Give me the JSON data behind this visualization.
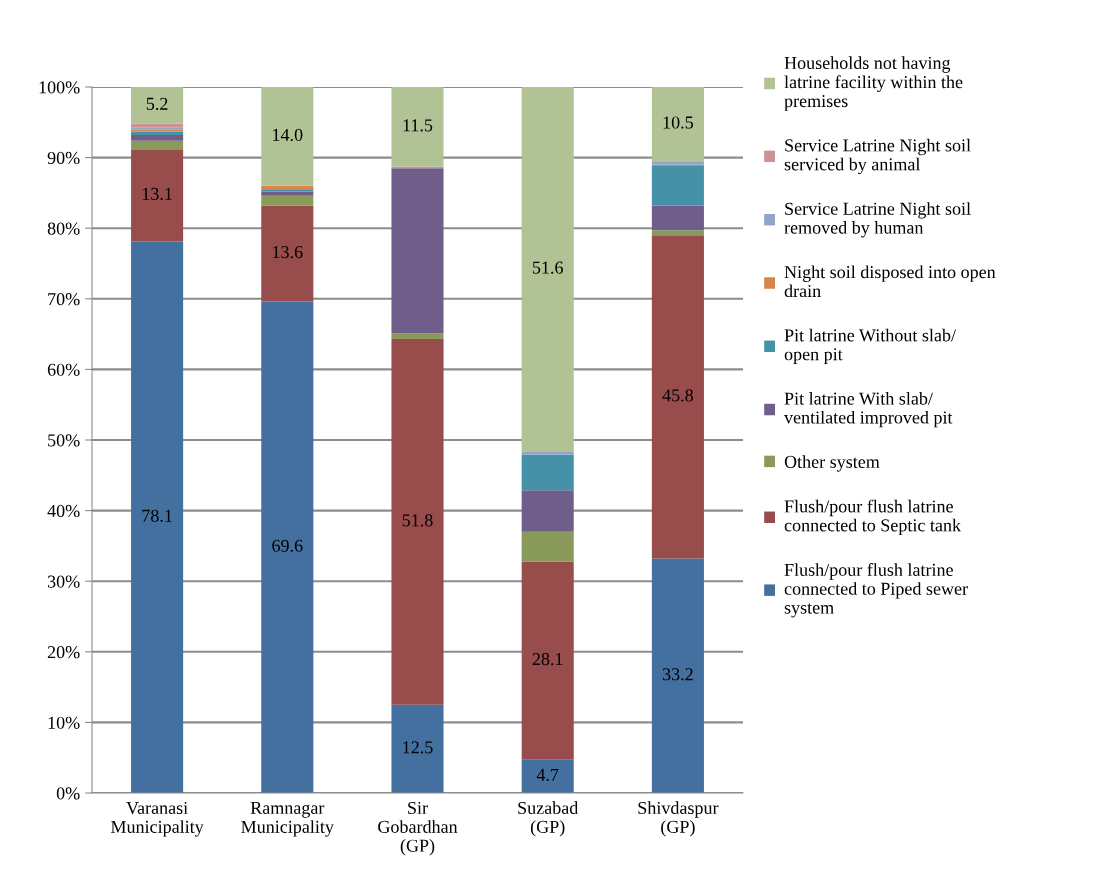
{
  "chart_data": {
    "type": "bar",
    "stacked": true,
    "categories": [
      "Varanasi\nMunicipality",
      "Ramnagar\nMunicipality",
      "Sir\nGobardhan\n(GP)",
      "Suzabad\n(GP)",
      "Shivdaspur\n(GP)"
    ],
    "series": [
      {
        "name": "Flush/pour flush latrine\nconnected to Piped sewer\nsystem",
        "color": "#4470a0",
        "values": [
          78.1,
          69.6,
          12.5,
          4.7,
          33.2
        ],
        "value_labels": [
          "78.1",
          "69.6",
          "12.5",
          "4.7",
          "33.2"
        ]
      },
      {
        "name": "Flush/pour flush latrine\nconnected to Septic tank",
        "color": "#984c4b",
        "values": [
          13.1,
          13.6,
          51.8,
          28.1,
          45.8
        ],
        "value_labels": [
          "13.1",
          "13.6",
          "51.8",
          "28.1",
          "45.8"
        ]
      },
      {
        "name": "Other system",
        "color": "#8a9a5b",
        "values": [
          1.2,
          1.4,
          0.8,
          4.2,
          0.7
        ]
      },
      {
        "name": "Pit latrine With slab/\nventilated improved pit",
        "color": "#705e8a",
        "values": [
          0.8,
          0.6,
          23.4,
          5.9,
          3.5
        ]
      },
      {
        "name": "Pit latrine Without slab/\nopen pit",
        "color": "#4592a8",
        "values": [
          0.5,
          0.2,
          0.0,
          5.0,
          5.6
        ]
      },
      {
        "name": "Night soil disposed into open\ndrain",
        "color": "#d8844a",
        "values": [
          0.3,
          0.6,
          0.0,
          0.0,
          0.2
        ]
      },
      {
        "name": "Service Latrine Night soil\nremoved by human",
        "color": "#8fa6c9",
        "values": [
          0.3,
          0.0,
          0.0,
          0.5,
          0.5
        ]
      },
      {
        "name": "Service Latrine Night soil\nserviced by animal",
        "color": "#cf9193",
        "values": [
          0.5,
          0.0,
          0.2,
          0.0,
          0.0
        ]
      },
      {
        "name": "Households not having\nlatrine facility within the\npremises",
        "color": "#b1c294",
        "values": [
          5.2,
          14.0,
          11.5,
          51.6,
          10.5
        ],
        "value_labels": [
          "5.2",
          "14.0",
          "11.5",
          "51.6",
          "10.5"
        ]
      }
    ],
    "ylim": [
      0,
      100
    ],
    "yticks": [
      {
        "value": 0,
        "label": "0%"
      },
      {
        "value": 10,
        "label": "10%"
      },
      {
        "value": 20,
        "label": "20%"
      },
      {
        "value": 30,
        "label": "30%"
      },
      {
        "value": 40,
        "label": "40%"
      },
      {
        "value": 50,
        "label": "50%"
      },
      {
        "value": 60,
        "label": "60%"
      },
      {
        "value": 70,
        "label": "70%"
      },
      {
        "value": 80,
        "label": "80%"
      },
      {
        "value": 90,
        "label": "90%"
      },
      {
        "value": 100,
        "label": "100%"
      }
    ],
    "grid": "y",
    "legend": "right"
  }
}
